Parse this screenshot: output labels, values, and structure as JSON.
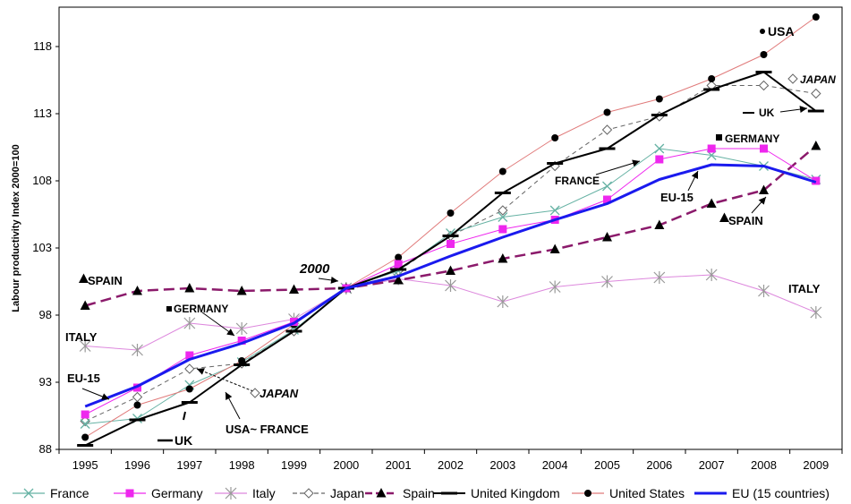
{
  "chart_data": {
    "type": "line",
    "ylabel": "Labour productivity Index 2000=100",
    "xlabel": "",
    "ylim": [
      88,
      121
    ],
    "yticks": [
      88,
      93,
      98,
      103,
      108,
      113,
      118
    ],
    "x": [
      "1995",
      "1996",
      "1997",
      "1998",
      "1999",
      "2000",
      "2001",
      "2002",
      "2003",
      "2004",
      "2005",
      "2006",
      "2007",
      "2008",
      "2009"
    ],
    "grid": false,
    "legend_position": "bottom",
    "series": [
      {
        "name": "France",
        "color": "#66b2a4",
        "marker": "x",
        "dash": "solid",
        "width": 1,
        "values": [
          89.9,
          90.3,
          92.8,
          94.5,
          96.9,
          100,
          101.3,
          104.1,
          105.3,
          105.8,
          107.6,
          110.4,
          109.9,
          109.1,
          108.1
        ]
      },
      {
        "name": "Germany",
        "color": "#ee27ee",
        "marker": "square",
        "dash": "solid",
        "width": 1,
        "values": [
          90.6,
          92.6,
          95.0,
          96.1,
          97.5,
          100,
          101.8,
          103.3,
          104.4,
          105.1,
          106.6,
          109.6,
          110.4,
          110.4,
          108.0
        ]
      },
      {
        "name": "Italy",
        "color": "#dd88dd",
        "marker": "star",
        "dash": "solid",
        "width": 1,
        "values": [
          95.7,
          95.4,
          97.4,
          97.0,
          97.7,
          100,
          100.7,
          100.2,
          99.0,
          100.1,
          100.5,
          100.8,
          101.0,
          99.8,
          98.2
        ]
      },
      {
        "name": "Japan",
        "color": "#666666",
        "marker": "diamond",
        "dash": "dashed",
        "width": 1,
        "values": [
          90.1,
          91.9,
          94.0,
          94.4,
          96.8,
          100,
          101.3,
          103.9,
          105.8,
          109.1,
          111.8,
          112.8,
          115.1,
          115.1,
          114.5
        ]
      },
      {
        "name": "Spain",
        "color": "#8b1a6b",
        "marker": "triangle",
        "dash": "dashed",
        "width": 2.5,
        "values": [
          98.7,
          99.8,
          100.0,
          99.8,
          99.9,
          100,
          100.6,
          101.3,
          102.2,
          102.9,
          103.8,
          104.7,
          106.3,
          107.3,
          110.6
        ]
      },
      {
        "name": "United Kingdom",
        "color": "#000000",
        "marker": "dash",
        "dash": "solid",
        "width": 2,
        "values": [
          88.3,
          90.2,
          91.5,
          94.3,
          96.8,
          100,
          101.4,
          103.9,
          107.1,
          109.3,
          110.4,
          112.9,
          114.8,
          116.1,
          113.2
        ]
      },
      {
        "name": "United States",
        "color": "#e07a7a",
        "marker": "circle",
        "dash": "solid",
        "width": 1,
        "values": [
          88.9,
          91.3,
          92.5,
          94.6,
          97.3,
          100,
          102.3,
          105.6,
          108.7,
          111.2,
          113.1,
          114.1,
          115.6,
          117.4,
          120.2
        ]
      },
      {
        "name": "EU (15 countries)",
        "color": "#1a1aee",
        "marker": "none",
        "dash": "solid",
        "width": 3,
        "values": [
          91.2,
          92.7,
          94.7,
          95.9,
          97.4,
          100,
          100.9,
          102.4,
          103.8,
          105.1,
          106.3,
          108.1,
          109.2,
          109.1,
          107.9
        ]
      }
    ],
    "annotations": [
      {
        "text": "2000",
        "style": "bold-italic",
        "size": 15
      },
      {
        "text": "USA",
        "style": "bold",
        "size": 14
      },
      {
        "text": "JAPAN",
        "style": "bold-italic",
        "size": 12
      },
      {
        "text": "UK",
        "style": "bold",
        "size": 12
      },
      {
        "text": "GERMANY",
        "style": "bold",
        "size": 12
      },
      {
        "text": "FRANCE",
        "style": "bold",
        "size": 12
      },
      {
        "text": "EU-15",
        "style": "bold",
        "size": 13
      },
      {
        "text": "SPAIN",
        "style": "bold",
        "size": 13
      },
      {
        "text": "ITALY",
        "style": "bold",
        "size": 13
      },
      {
        "text": "SPAIN",
        "style": "bold",
        "size": 13
      },
      {
        "text": "GERMANY",
        "style": "bold",
        "size": 12
      },
      {
        "text": "ITALY",
        "style": "bold",
        "size": 13
      },
      {
        "text": "EU-15",
        "style": "bold",
        "size": 13
      },
      {
        "text": "JAPAN",
        "style": "bold-italic",
        "size": 13
      },
      {
        "text": "USA~ FRANCE",
        "style": "bold",
        "size": 13
      },
      {
        "text": "UK",
        "style": "bold",
        "size": 14
      }
    ]
  }
}
